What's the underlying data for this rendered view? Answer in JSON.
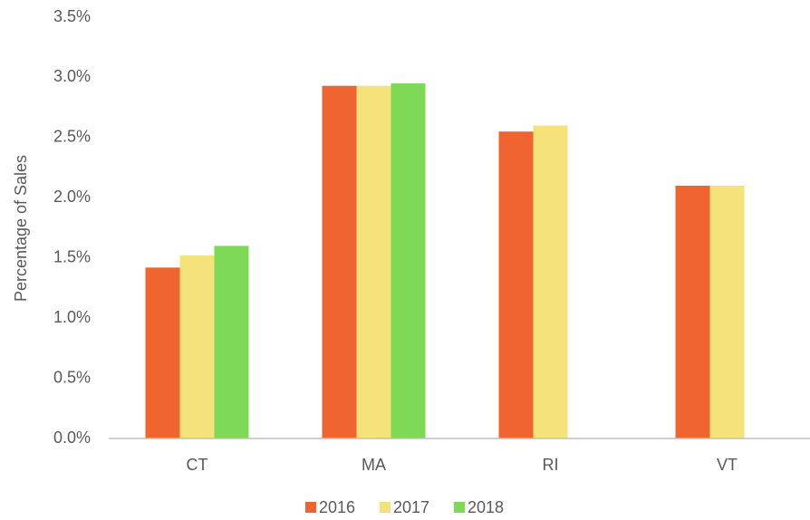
{
  "chart_data": {
    "type": "bar",
    "ylabel": "Percentage of Sales",
    "categories": [
      "CT",
      "MA",
      "RI",
      "VT"
    ],
    "series": [
      {
        "name": "2016",
        "color": "#f06430",
        "values": [
          1.42,
          2.93,
          2.55,
          2.1
        ]
      },
      {
        "name": "2017",
        "color": "#f5e27a",
        "values": [
          1.52,
          2.93,
          2.6,
          2.1
        ]
      },
      {
        "name": "2018",
        "color": "#7ed957",
        "values": [
          1.6,
          2.95,
          null,
          null
        ]
      }
    ],
    "ylim": [
      0,
      3.5
    ],
    "yticks": [
      {
        "value": 0,
        "label": "0.0%"
      },
      {
        "value": 0.5,
        "label": "0.5%"
      },
      {
        "value": 1,
        "label": "1.0%"
      },
      {
        "value": 1.5,
        "label": "1.5%"
      },
      {
        "value": 2,
        "label": "2.0%"
      },
      {
        "value": 2.5,
        "label": "2.5%"
      },
      {
        "value": 3,
        "label": "3.0%"
      },
      {
        "value": 3.5,
        "label": "3.5%"
      }
    ],
    "grid": false,
    "legend": "bottom"
  }
}
